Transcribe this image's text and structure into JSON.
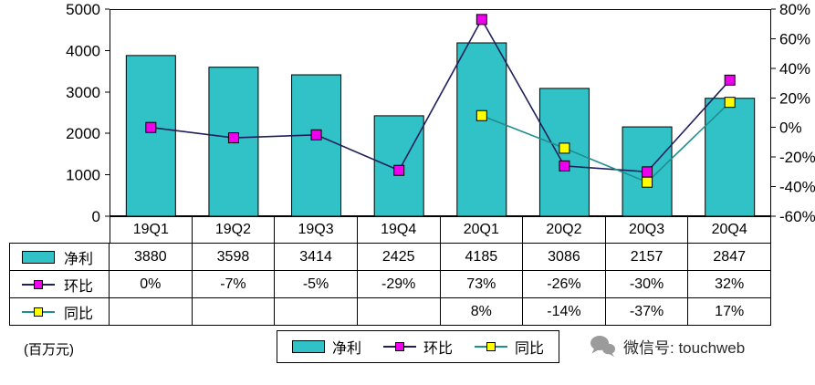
{
  "chart_data": {
    "type": "combo-bar-line",
    "title": "",
    "categories": [
      "19Q1",
      "19Q2",
      "19Q3",
      "19Q4",
      "20Q1",
      "20Q2",
      "20Q3",
      "20Q4"
    ],
    "series": [
      {
        "name": "净利",
        "type": "bar",
        "axis": "left",
        "values": [
          3880,
          3598,
          3414,
          2425,
          4185,
          3086,
          2157,
          2847
        ],
        "color": "#30C2C6"
      },
      {
        "name": "环比",
        "type": "line",
        "axis": "right",
        "values": [
          0,
          -7,
          -5,
          -29,
          73,
          -26,
          -30,
          32
        ],
        "marker_color": "#EE00EE",
        "line_color": "#1F1F5C"
      },
      {
        "name": "同比",
        "type": "line",
        "axis": "right",
        "values": [
          null,
          null,
          null,
          null,
          8,
          -14,
          -37,
          17
        ],
        "marker_color": "#FFFF00",
        "line_color": "#1E8F8F"
      }
    ],
    "left_axis": {
      "min": 0,
      "max": 5000,
      "ticks": [
        "5000",
        "4000",
        "3000",
        "2000",
        "1000",
        "0"
      ]
    },
    "right_axis": {
      "min": -60,
      "max": 80,
      "ticks": [
        "80%",
        "60%",
        "40%",
        "20%",
        "0%",
        "-20%",
        "-40%",
        "-60%"
      ]
    },
    "legend": [
      "净利",
      "环比",
      "同比"
    ],
    "legend_position": "bottom",
    "grid": false
  },
  "table": {
    "rows": [
      {
        "label": "净利",
        "values": [
          "3880",
          "3598",
          "3414",
          "2425",
          "4185",
          "3086",
          "2157",
          "2847"
        ]
      },
      {
        "label": "环比",
        "values": [
          "0%",
          "-7%",
          "-5%",
          "-29%",
          "73%",
          "-26%",
          "-30%",
          "32%"
        ]
      },
      {
        "label": "同比",
        "values": [
          "",
          "",
          "",
          "",
          "8%",
          "-14%",
          "-37%",
          "17%"
        ]
      }
    ]
  },
  "footer": {
    "unit_note": "(百万元)",
    "wechat": "微信号: touchweb"
  }
}
